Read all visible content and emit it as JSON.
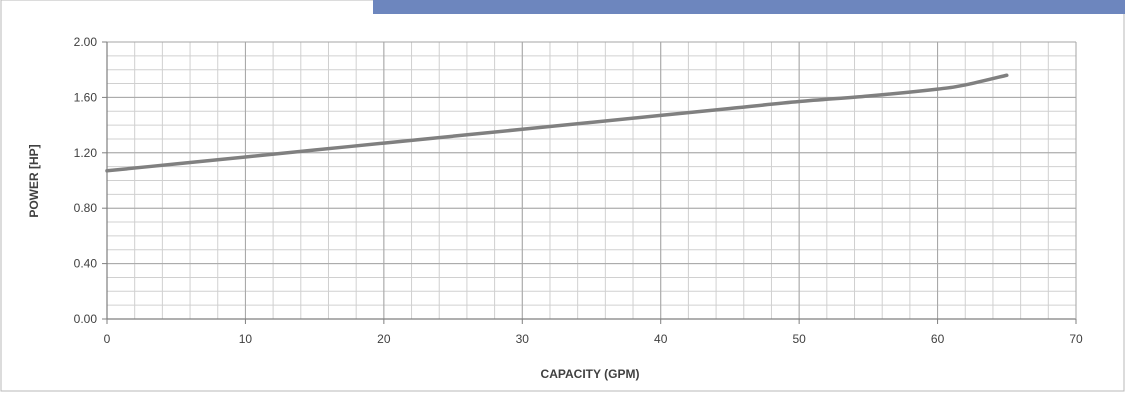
{
  "chart_data": {
    "type": "line",
    "title": "",
    "xlabel": "CAPACITY (GPM)",
    "ylabel": "POWER [HP]",
    "xlim": [
      0,
      70
    ],
    "ylim": [
      0,
      2.0
    ],
    "x_ticks": [
      "0",
      "10",
      "20",
      "30",
      "40",
      "50",
      "60",
      "70"
    ],
    "y_ticks": [
      "0.00",
      "0.40",
      "0.80",
      "1.20",
      "1.60",
      "2.00"
    ],
    "grid": true,
    "legend": "none",
    "series": [
      {
        "color": "#808080",
        "x": [
          0,
          5,
          10,
          15,
          20,
          25,
          30,
          35,
          40,
          45,
          50,
          55,
          60,
          62,
          65
        ],
        "y": [
          1.07,
          1.12,
          1.17,
          1.22,
          1.27,
          1.32,
          1.37,
          1.42,
          1.47,
          1.52,
          1.57,
          1.61,
          1.66,
          1.69,
          1.76
        ]
      }
    ]
  },
  "colors": {
    "header_bar": "#6d86be",
    "border": "#b8b8b8",
    "grid": "#a6a6a6",
    "axis": "#7f7f7f"
  }
}
